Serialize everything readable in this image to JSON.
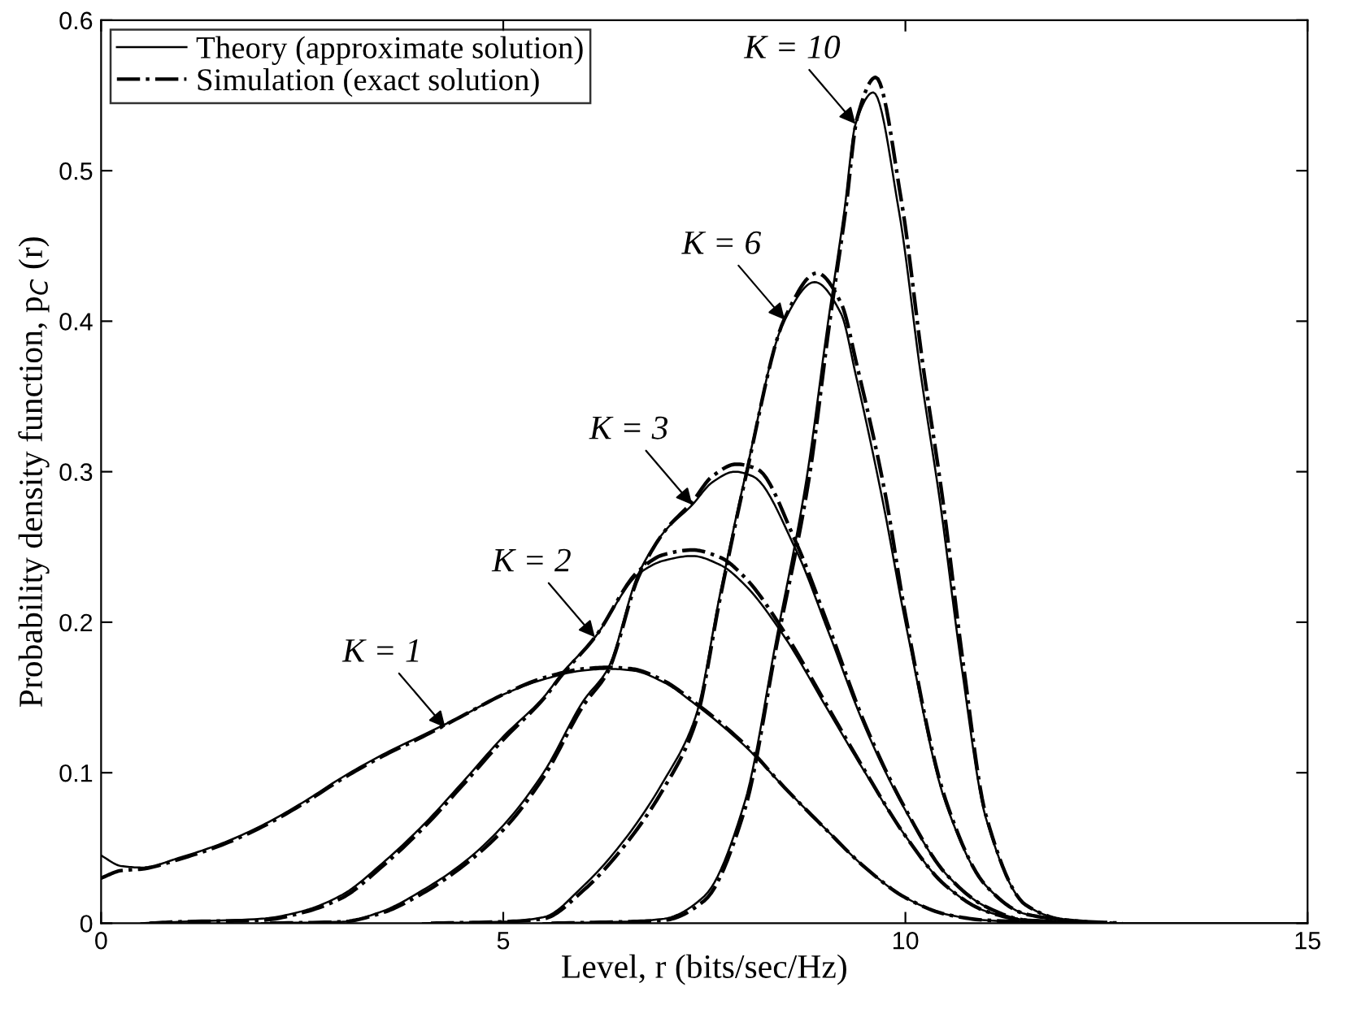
{
  "chart_data": {
    "type": "line",
    "xlabel": "Level, r (bits/sec/Hz)",
    "ylabel": "Probability density function, p$_{C}$ (r)",
    "xlim": [
      0,
      15
    ],
    "ylim": [
      0,
      0.6
    ],
    "xticks": [
      0,
      5,
      10,
      15
    ],
    "yticks": [
      0,
      0.1,
      0.2,
      0.3,
      0.4,
      0.5,
      0.6
    ],
    "grid": false,
    "legend": "top left",
    "marker": "none",
    "series": [
      {
        "name": "Theory (approximate solution)",
        "color": "#000000",
        "line_style": "solid",
        "x": [
          0,
          0.25,
          0.5,
          1,
          1.5,
          2,
          2.5,
          3,
          3.5,
          4,
          4.5,
          5,
          5.5,
          6,
          6.3,
          6.6,
          7,
          7.35,
          8,
          8.5,
          9,
          9.5,
          10,
          10.5,
          11,
          12,
          15
        ],
        "values": [
          0.045,
          0.038,
          0.037,
          0.044,
          0.053,
          0.065,
          0.08,
          0.097,
          0.112,
          0.125,
          0.138,
          0.152,
          0.162,
          0.168,
          0.169,
          0.168,
          0.16,
          0.147,
          0.118,
          0.09,
          0.063,
          0.037,
          0.017,
          0.006,
          0.002,
          0,
          0
        ]
      },
      {
        "color": "#000000",
        "line_style": "solid",
        "x": [
          0.5,
          1,
          2,
          2.5,
          3,
          3.5,
          4,
          4.5,
          5,
          5.5,
          5.73,
          6.14,
          6.68,
          7,
          7.35,
          7.7,
          8,
          8.5,
          9,
          9.5,
          10,
          10.5,
          11,
          11.5,
          12.5
        ],
        "values": [
          0,
          0.001,
          0.003,
          0.008,
          0.019,
          0.04,
          0.065,
          0.094,
          0.124,
          0.15,
          0.166,
          0.19,
          0.232,
          0.241,
          0.244,
          0.238,
          0.225,
          0.19,
          0.145,
          0.1,
          0.058,
          0.025,
          0.008,
          0.002,
          0
        ]
      },
      {
        "color": "#000000",
        "line_style": "solid",
        "x": [
          2,
          3,
          3.5,
          4,
          4.5,
          5,
          5.5,
          6,
          6.3,
          6.68,
          7,
          7.35,
          7.6,
          7.88,
          8.1,
          8.64,
          9.04,
          9.5,
          10,
          10.5,
          11,
          11.5,
          12.4
        ],
        "values": [
          0,
          0.001,
          0.008,
          0.022,
          0.04,
          0.065,
          0.1,
          0.148,
          0.169,
          0.232,
          0.26,
          0.278,
          0.293,
          0.3,
          0.297,
          0.248,
          0.194,
          0.13,
          0.075,
          0.033,
          0.011,
          0.002,
          0
        ]
      },
      {
        "color": "#000000",
        "line_style": "solid",
        "x": [
          4,
          5,
          5.5,
          6,
          6.5,
          7,
          7.39,
          7.7,
          8,
          8.5,
          8.87,
          9.2,
          9.38,
          9.72,
          10,
          10.5,
          11,
          11.5,
          12.3
        ],
        "values": [
          0,
          0.001,
          0.004,
          0.025,
          0.055,
          0.095,
          0.137,
          0.22,
          0.295,
          0.401,
          0.426,
          0.405,
          0.365,
          0.28,
          0.2,
          0.08,
          0.025,
          0.006,
          0
        ]
      },
      {
        "color": "#000000",
        "line_style": "solid",
        "x": [
          5.5,
          6.5,
          7,
          7.5,
          8,
          8.4,
          8.77,
          9.04,
          9.24,
          9.38,
          9.6,
          9.92,
          10.19,
          10.43,
          10.7,
          11,
          11.5,
          12,
          12.6
        ],
        "values": [
          0,
          0.001,
          0.003,
          0.018,
          0.08,
          0.19,
          0.295,
          0.4,
          0.473,
          0.531,
          0.552,
          0.473,
          0.365,
          0.28,
          0.17,
          0.07,
          0.012,
          0.002,
          0
        ]
      },
      {
        "name": "Simulation (exact solution)",
        "color": "#000000",
        "line_style": "dashdot",
        "x": [
          0,
          0.25,
          0.5,
          1,
          1.5,
          2,
          2.5,
          3,
          3.5,
          4,
          4.5,
          5,
          5.5,
          6,
          6.3,
          6.6,
          7,
          7.35,
          8,
          8.5,
          9,
          9.5,
          10,
          10.5,
          11,
          12.2
        ],
        "values": [
          0.03,
          0.035,
          0.036,
          0.043,
          0.052,
          0.064,
          0.079,
          0.096,
          0.111,
          0.124,
          0.138,
          0.152,
          0.163,
          0.169,
          0.17,
          0.169,
          0.161,
          0.148,
          0.119,
          0.09,
          0.063,
          0.037,
          0.017,
          0.006,
          0.002,
          0
        ]
      },
      {
        "color": "#000000",
        "line_style": "dashdot",
        "x": [
          0.6,
          1,
          2,
          2.5,
          3,
          3.5,
          4,
          4.5,
          5,
          5.5,
          5.73,
          6.14,
          6.68,
          7,
          7.35,
          7.7,
          8,
          8.5,
          9,
          9.5,
          10,
          10.5,
          11,
          11.5,
          12.6
        ],
        "values": [
          0,
          0.001,
          0.002,
          0.007,
          0.017,
          0.038,
          0.063,
          0.092,
          0.122,
          0.149,
          0.165,
          0.19,
          0.234,
          0.245,
          0.248,
          0.243,
          0.23,
          0.193,
          0.147,
          0.101,
          0.058,
          0.025,
          0.008,
          0.002,
          0
        ]
      },
      {
        "color": "#000000",
        "line_style": "dashdot",
        "x": [
          2.1,
          3,
          3.5,
          4,
          4.5,
          5,
          5.5,
          6,
          6.3,
          6.68,
          7,
          7.35,
          7.6,
          7.9,
          8.15,
          8.64,
          9.04,
          9.5,
          10,
          10.5,
          11,
          11.5,
          12.5
        ],
        "values": [
          0,
          0.001,
          0.007,
          0.02,
          0.038,
          0.062,
          0.097,
          0.145,
          0.167,
          0.23,
          0.26,
          0.28,
          0.297,
          0.305,
          0.302,
          0.253,
          0.198,
          0.132,
          0.076,
          0.033,
          0.011,
          0.002,
          0
        ]
      },
      {
        "color": "#000000",
        "line_style": "dashdot",
        "x": [
          4.1,
          5,
          5.5,
          6,
          6.5,
          7,
          7.39,
          7.7,
          8,
          8.5,
          8.9,
          9.2,
          9.4,
          9.75,
          10,
          10.5,
          11,
          11.5,
          12.4
        ],
        "values": [
          0,
          0.001,
          0.003,
          0.022,
          0.051,
          0.09,
          0.133,
          0.217,
          0.293,
          0.402,
          0.432,
          0.412,
          0.37,
          0.285,
          0.205,
          0.082,
          0.025,
          0.006,
          0
        ]
      },
      {
        "color": "#000000",
        "line_style": "dashdot",
        "x": [
          5.6,
          6.5,
          7,
          7.5,
          8,
          8.4,
          8.8,
          9.06,
          9.26,
          9.4,
          9.63,
          9.95,
          10.22,
          10.46,
          10.72,
          11,
          11.5,
          12,
          12.7
        ],
        "values": [
          0,
          0.001,
          0.002,
          0.015,
          0.075,
          0.185,
          0.295,
          0.4,
          0.475,
          0.535,
          0.562,
          0.48,
          0.37,
          0.283,
          0.172,
          0.072,
          0.012,
          0.002,
          0
        ]
      }
    ],
    "annotations": [
      {
        "text": "K = 1",
        "x": 4.28,
        "y": 0.13
      },
      {
        "text": "K = 2",
        "x": 6.14,
        "y": 0.19
      },
      {
        "text": "K = 3",
        "x": 7.35,
        "y": 0.278
      },
      {
        "text": "K = 6",
        "x": 8.5,
        "y": 0.401
      },
      {
        "text": "K = 10",
        "x": 9.38,
        "y": 0.531
      }
    ]
  }
}
